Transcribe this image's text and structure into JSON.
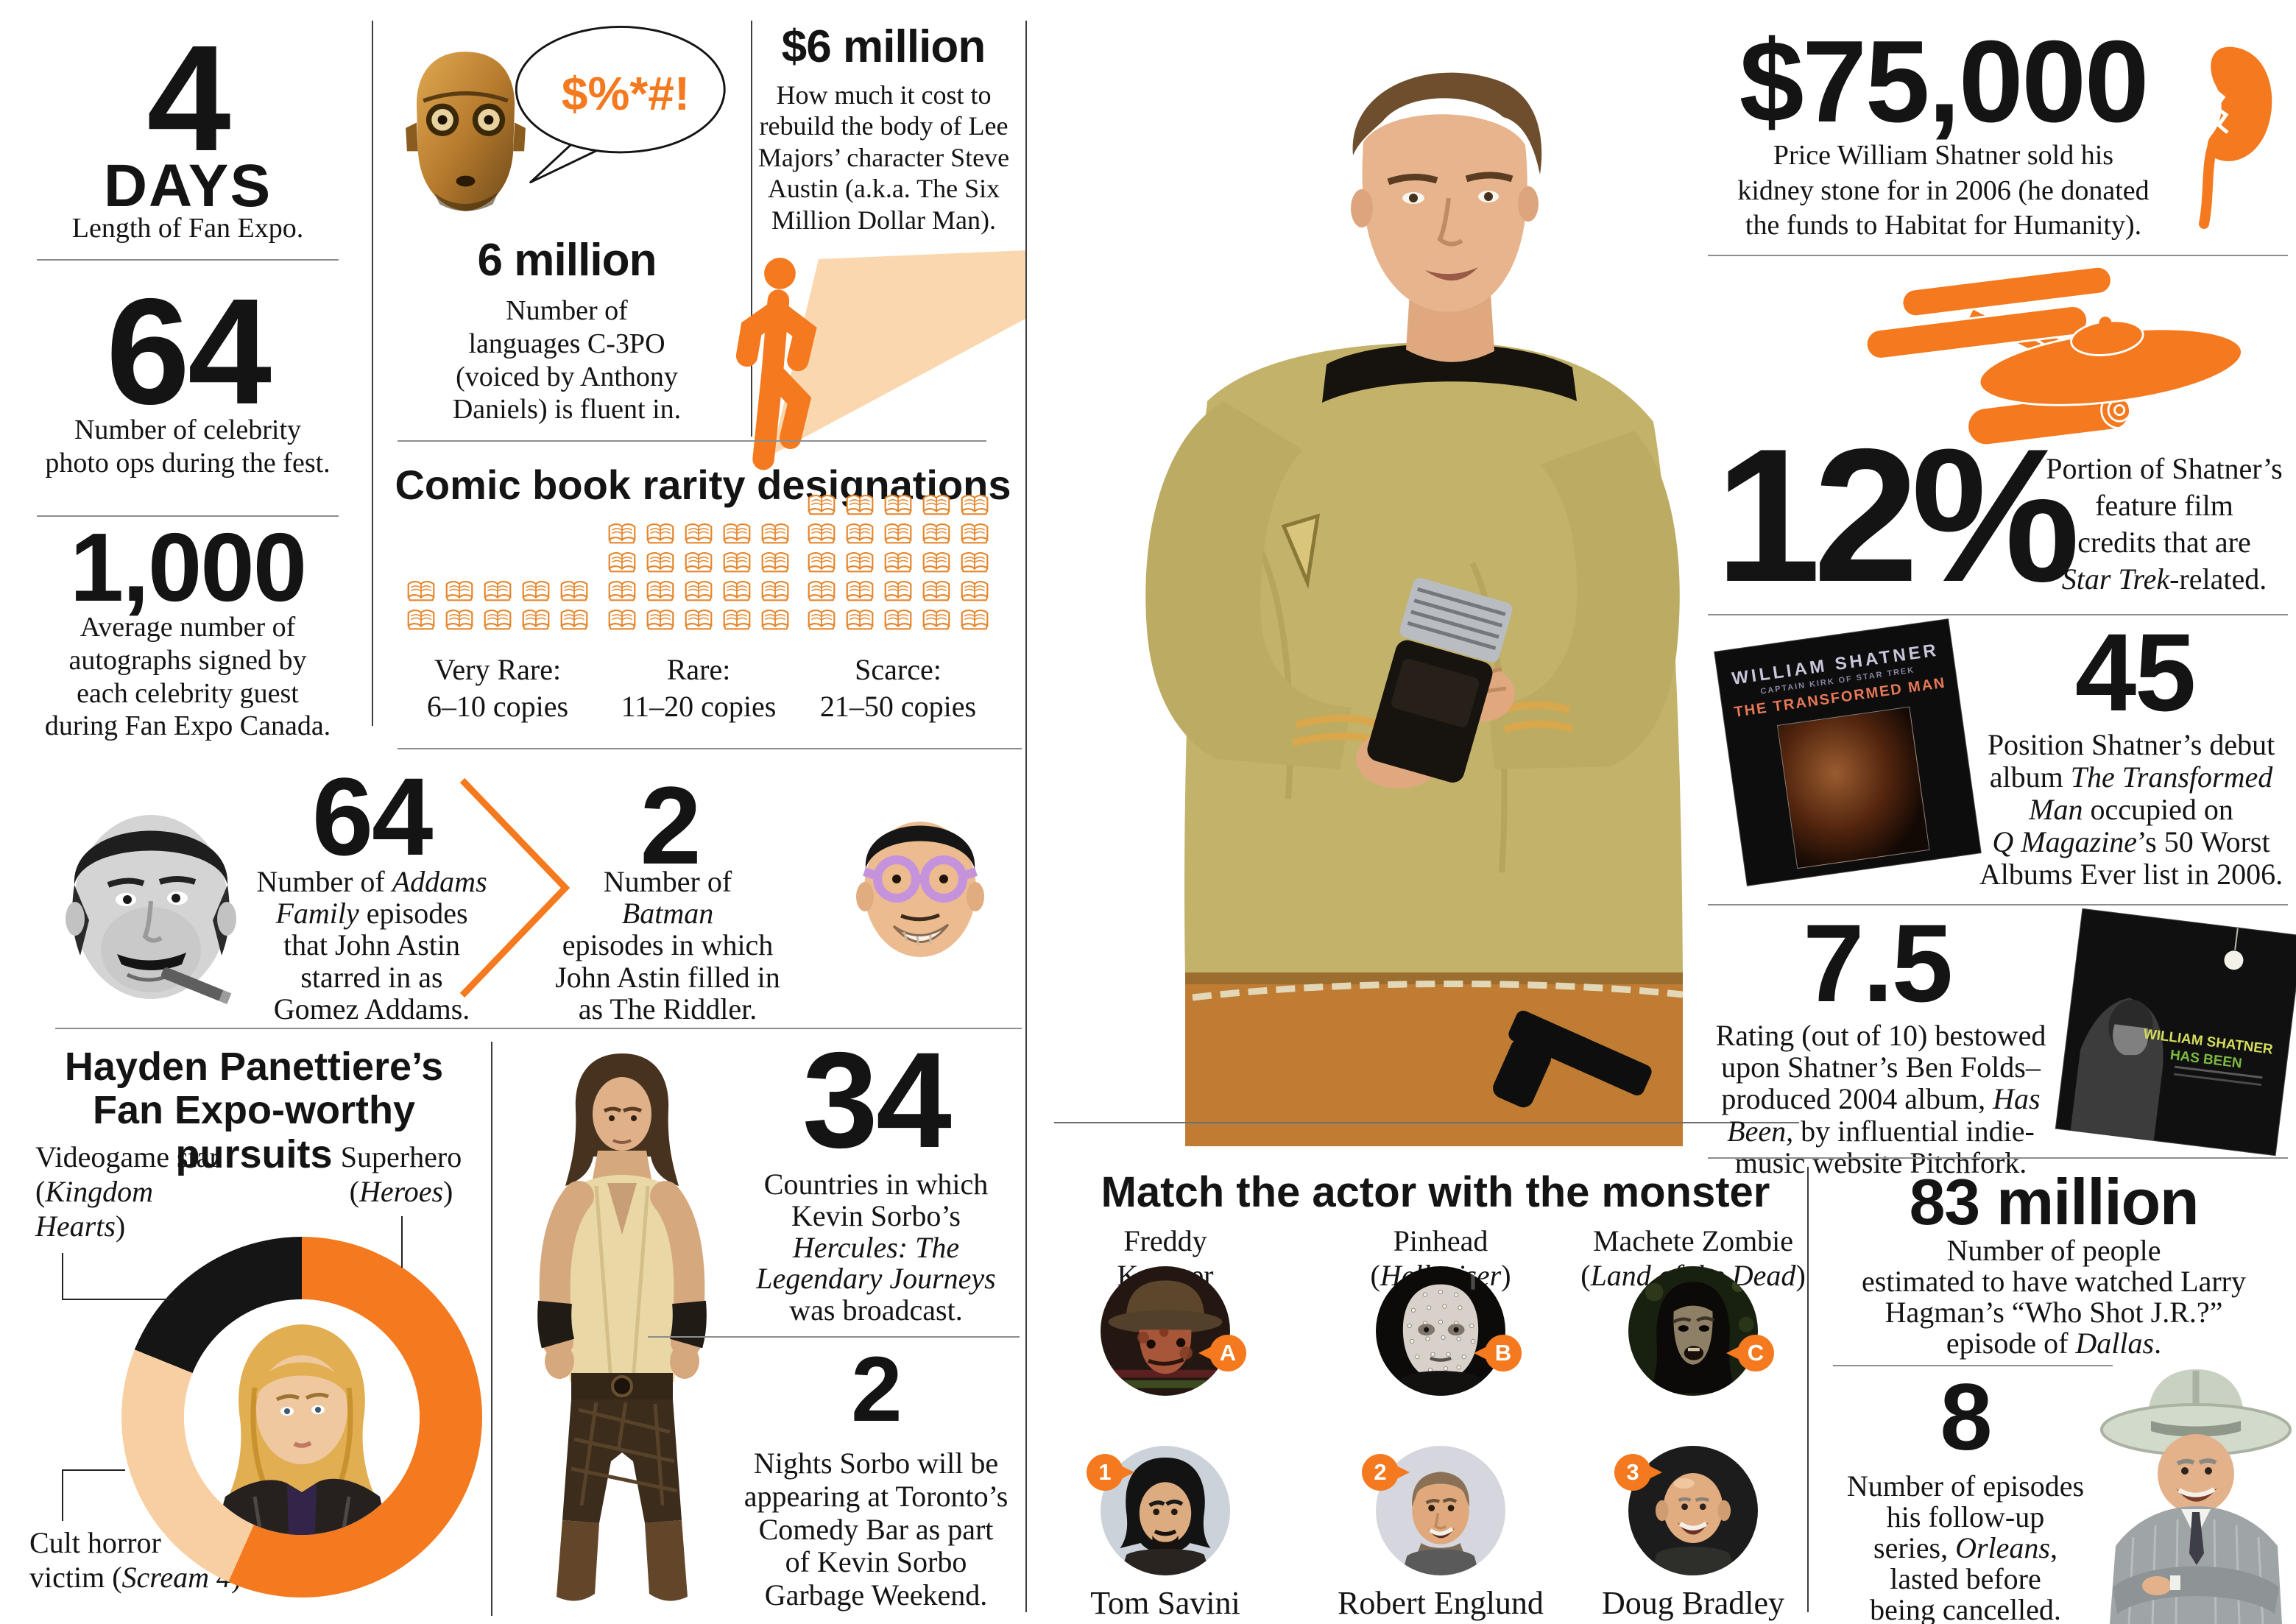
{
  "colors": {
    "accent": "#f4791f",
    "peach_wedge": "#fbd7af",
    "donut_peach": "#f8cfa2",
    "donut_black": "#151515",
    "book_orange": "#e5862c",
    "mask_purple": "#c493dc"
  },
  "left_column": {
    "stats": [
      {
        "value": "4",
        "unit": "DAYS",
        "caption": "Length of Fan Expo."
      },
      {
        "value": "64",
        "caption": "Number of celebrity\nphoto ops during the fest."
      },
      {
        "value": "1,000",
        "caption": "Average number of\nautographs signed by\neach celebrity guest\nduring Fan Expo Canada."
      }
    ]
  },
  "c3po": {
    "bubble_text": "$%*#!",
    "value": "6 million",
    "caption": "Number of\nlanguages C-3PO\n(voiced by Anthony\nDaniels) is fluent in."
  },
  "six_million_dollar": {
    "value": "$6 million",
    "caption": "How much it cost to\nrebuild the body of Lee\nMajors’ character Steve\nAustin (a.k.a. The Six\nMillion Dollar Man)."
  },
  "comic_rarity": {
    "title": "Comic book rarity designations",
    "groups": [
      {
        "label": "Very Rare:",
        "range": "6–10 copies",
        "books": 10
      },
      {
        "label": "Rare:",
        "range": "11–20 copies",
        "books": 20
      },
      {
        "label": "Scarce:",
        "range": "21–50 copies",
        "books": 25
      }
    ]
  },
  "addams": {
    "value": "64",
    "caption": "Number of *Addams*\n*Family* episodes\nthat John Astin\nstarred in as\nGomez Addams."
  },
  "riddler": {
    "value": "2",
    "caption": "Number of\n*Batman*\nepisodes in which\nJohn Astin filled in\nas The Riddler."
  },
  "hayden": {
    "title": "Hayden Panettiere’s\nFan Expo-worthy pursuits",
    "labels": {
      "videogame": "Videogame star\n(*Kingdom*\n*Hearts*)",
      "superhero": "Superhero\n(*Heroes*)",
      "horror": "Cult horror\nvictim (*Scream 4*)"
    },
    "segments": [
      {
        "name": "Superhero (Heroes)",
        "color": "#f4791f",
        "deg": 204
      },
      {
        "name": "Cult horror victim (Scream 4)",
        "color": "#f8cfa2",
        "deg": 88
      },
      {
        "name": "Videogame star (Kingdom Hearts)",
        "color": "#151515",
        "deg": 68
      }
    ]
  },
  "sorbo": {
    "countries": {
      "value": "34",
      "caption": "Countries in which\nKevin Sorbo’s\n*Hercules: The*\n*Legendary Journeys*\nwas broadcast."
    },
    "nights": {
      "value": "2",
      "caption": "Nights Sorbo will be\nappearing at Toronto’s\nComedy Bar as part\nof Kevin Sorbo\nGarbage Weekend."
    }
  },
  "match": {
    "title": "Match the actor with the monster",
    "monsters": [
      {
        "badge": "A",
        "name": "Freddy\nKrueger"
      },
      {
        "badge": "B",
        "name": "Pinhead\n(*Hellraiser*)"
      },
      {
        "badge": "C",
        "name": "Machete Zombie\n(*Land of the Dead*)"
      }
    ],
    "actors": [
      {
        "badge": "1",
        "name": "Tom Savini"
      },
      {
        "badge": "2",
        "name": "Robert Englund"
      },
      {
        "badge": "3",
        "name": "Doug Bradley"
      }
    ]
  },
  "shatner": {
    "kidney": {
      "value": "$75,000",
      "caption": "Price William Shatner sold his\nkidney stone for in 2006 (he donated\nthe funds to Habitat for Humanity)."
    },
    "film": {
      "value": "12%",
      "caption": "Portion of Shatner’s\nfeature film\ncredits that are\n*Star Trek*-related."
    },
    "album45": {
      "value": "45",
      "caption": "Position Shatner’s debut\nalbum *The Transformed*\n*Man* occupied on\n*Q Magazine*’s 50 Worst\nAlbums Ever list in 2006.",
      "cover": {
        "artist": "WILLIAM SHATNER",
        "subtitle": "CAPTAIN KIRK OF STAR TREK",
        "title": "THE TRANSFORMED MAN"
      }
    },
    "rating": {
      "value": "7.5",
      "caption": "Rating (out of 10) bestowed\nupon Shatner’s Ben Folds–\nproduced 2004 album, *Has*\n*Been,* by influential indie-\nmusic website Pitchfork.",
      "cover": {
        "artist": "WILLIAM SHATNER",
        "title": "HAS BEEN"
      }
    }
  },
  "hagman": {
    "dallas": {
      "value": "83 million",
      "caption": "Number of people\nestimated to have watched Larry\nHagman’s “Who Shot J.R.?”\nepisode of *Dallas*."
    },
    "orleans": {
      "value": "8",
      "caption": "Number of episodes\nhis follow-up\nseries, *Orleans*,\nlasted before\nbeing cancelled."
    }
  },
  "chart_data": [
    {
      "type": "pie",
      "title": "Hayden Panettiere’s Fan Expo-worthy pursuits",
      "labels": [
        "Superhero (Heroes)",
        "Cult horror victim (Scream 4)",
        "Videogame star (Kingdom Hearts)"
      ],
      "values": [
        57,
        24,
        19
      ],
      "unit": "share of donut, visual estimate (%)",
      "colors": [
        "#f4791f",
        "#f8cfa2",
        "#151515"
      ],
      "legend_position": "callout-labels",
      "grid": false
    },
    {
      "type": "bar",
      "title": "Comic book rarity designations",
      "categories": [
        "Very Rare: 6–10 copies",
        "Rare: 11–20 copies",
        "Scarce: 21–50 copies"
      ],
      "values": [
        10,
        20,
        25
      ],
      "ylabel": "book icons shown",
      "grid": false
    }
  ]
}
